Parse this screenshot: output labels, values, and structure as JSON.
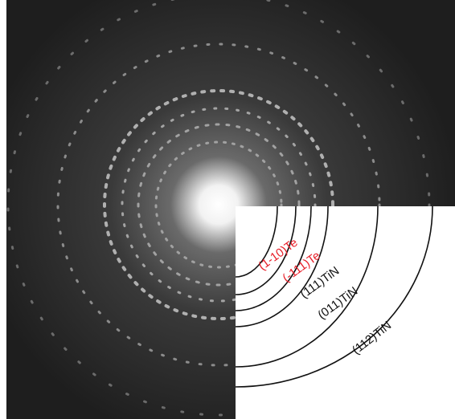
{
  "labels": [
    {
      "text": "(1-10)Te",
      "color": "#e8202a"
    },
    {
      "text": "(-111)Te",
      "color": "#e8202a"
    },
    {
      "text": "(111)TiN",
      "color": "#111111"
    },
    {
      "text": "(011)TiN",
      "color": "#111111"
    },
    {
      "text": "(112)TiN",
      "color": "#111111"
    }
  ]
}
